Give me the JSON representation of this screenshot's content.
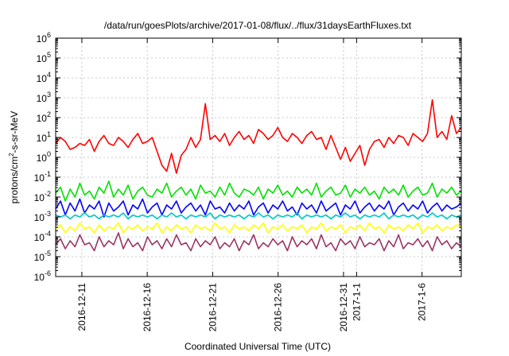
{
  "chart_data": {
    "type": "line",
    "title": "/data/run/goesPlots/archive/2017-01-08/flux/../flux/31daysEarthFluxes.txt",
    "xlabel": "Coordinated Universal Time (UTC)",
    "ylabel": {
      "base": "protons/cm",
      "sup": "2",
      "rest": "-s-sr-MeV"
    },
    "yscale": "log",
    "ylim_exp": [
      -6,
      6
    ],
    "y_ticks": [
      {
        "base": "10",
        "exp": "6"
      },
      {
        "base": "10",
        "exp": "5"
      },
      {
        "base": "10",
        "exp": "4"
      },
      {
        "base": "10",
        "exp": "3"
      },
      {
        "base": "10",
        "exp": "2"
      },
      {
        "base": "10",
        "exp": "1"
      },
      {
        "base": "10",
        "exp": "0"
      },
      {
        "base": "10",
        "exp": "-1"
      },
      {
        "base": "10",
        "exp": "-2"
      },
      {
        "base": "10",
        "exp": "-3"
      },
      {
        "base": "10",
        "exp": "-4"
      },
      {
        "base": "10",
        "exp": "-5"
      },
      {
        "base": "10",
        "exp": "-6"
      }
    ],
    "x_range_days": [
      0,
      31
    ],
    "x_ticks": [
      {
        "label": "2016-12-11",
        "day": 2.0
      },
      {
        "label": "2016-12-16",
        "day": 7.0
      },
      {
        "label": "2016-12-21",
        "day": 12.0
      },
      {
        "label": "2016-12-26",
        "day": 17.0
      },
      {
        "label": "2016-12-31",
        "day": 22.0
      },
      {
        "label": "2017-1-1",
        "day": 23.0
      },
      {
        "label": "2017-1-6",
        "day": 28.0
      }
    ],
    "grid": true,
    "series": [
      {
        "color": "#ff0000",
        "log_values": [
          0.7,
          1.0,
          0.8,
          0.4,
          0.5,
          0.7,
          0.6,
          0.9,
          0.3,
          0.8,
          1.1,
          0.7,
          0.6,
          1.0,
          0.8,
          0.5,
          0.9,
          1.2,
          0.7,
          0.8,
          1.0,
          0.3,
          -0.4,
          -0.7,
          0.2,
          -0.8,
          0.1,
          0.4,
          1.0,
          0.5,
          0.9,
          2.7,
          0.9,
          1.1,
          0.8,
          1.2,
          0.6,
          1.0,
          1.3,
          0.9,
          1.1,
          0.7,
          1.4,
          1.2,
          0.9,
          1.1,
          1.5,
          1.0,
          0.8,
          1.2,
          1.0,
          0.7,
          1.1,
          1.3,
          0.9,
          1.0,
          0.4,
          1.1,
          0.5,
          -0.1,
          0.5,
          -0.2,
          0.2,
          0.6,
          -0.4,
          0.4,
          0.8,
          0.9,
          0.5,
          1.0,
          0.7,
          1.1,
          1.0,
          0.6,
          1.2,
          1.0,
          0.8,
          1.2,
          2.9,
          1.0,
          1.3,
          0.9,
          2.1,
          1.2,
          1.5
        ]
      },
      {
        "color": "#00e000",
        "log_values": [
          -1.8,
          -1.5,
          -2.2,
          -1.6,
          -2.0,
          -1.3,
          -1.9,
          -1.7,
          -2.1,
          -1.5,
          -1.8,
          -1.2,
          -2.0,
          -1.6,
          -1.9,
          -1.4,
          -2.1,
          -1.7,
          -1.5,
          -1.9,
          -2.0,
          -1.6,
          -1.8,
          -1.3,
          -2.0,
          -1.7,
          -1.5,
          -1.9,
          -1.6,
          -2.1,
          -1.4,
          -1.8,
          -1.7,
          -2.0,
          -1.5,
          -1.9,
          -1.3,
          -1.8,
          -2.0,
          -1.6,
          -1.7,
          -1.9,
          -1.5,
          -2.1,
          -1.6,
          -1.8,
          -1.4,
          -1.9,
          -1.7,
          -2.0,
          -1.5,
          -1.8,
          -1.6,
          -1.9,
          -1.3,
          -2.0,
          -1.7,
          -1.5,
          -1.9,
          -1.8,
          -1.4,
          -2.0,
          -1.6,
          -1.8,
          -1.5,
          -1.9,
          -1.7,
          -2.1,
          -1.5,
          -1.8,
          -1.6,
          -1.9,
          -1.4,
          -2.0,
          -1.7,
          -1.5,
          -1.9,
          -1.8,
          -1.3,
          -2.0,
          -1.6,
          -1.8,
          -1.5,
          -1.9,
          -1.7
        ]
      },
      {
        "color": "#0000ff",
        "log_values": [
          -2.6,
          -2.2,
          -2.9,
          -2.3,
          -2.7,
          -2.1,
          -2.8,
          -2.4,
          -2.6,
          -2.2,
          -3.0,
          -2.3,
          -2.7,
          -2.5,
          -2.2,
          -2.9,
          -2.4,
          -2.6,
          -2.1,
          -2.8,
          -2.5,
          -2.3,
          -2.9,
          -2.4,
          -2.6,
          -2.2,
          -2.8,
          -2.5,
          -2.3,
          -2.7,
          -2.4,
          -2.9,
          -2.2,
          -2.6,
          -2.5,
          -2.8,
          -2.3,
          -2.7,
          -2.4,
          -2.6,
          -2.2,
          -2.9,
          -2.5,
          -2.3,
          -2.8,
          -2.4,
          -2.6,
          -2.2,
          -2.7,
          -2.5,
          -2.9,
          -2.3,
          -2.6,
          -2.4,
          -2.8,
          -2.2,
          -2.7,
          -2.5,
          -2.3,
          -2.9,
          -2.4,
          -2.6,
          -2.2,
          -2.8,
          -2.5,
          -2.3,
          -2.7,
          -2.4,
          -2.6,
          -2.2,
          -2.9,
          -2.5,
          -2.3,
          -2.7,
          -2.4,
          -2.6,
          -2.2,
          -2.8,
          -2.5,
          -2.3,
          -2.7,
          -2.4,
          -2.6,
          -2.5,
          -2.3
        ]
      },
      {
        "color": "#00c8c8",
        "log_values": [
          -2.9,
          -3.0,
          -2.9,
          -3.1,
          -2.9,
          -3.0,
          -2.8,
          -3.0,
          -2.9,
          -3.1,
          -2.9,
          -3.0,
          -2.9,
          -3.0,
          -2.8,
          -3.1,
          -2.9,
          -3.0,
          -2.9,
          -3.0,
          -2.9,
          -3.1,
          -2.9,
          -3.0,
          -2.8,
          -3.0,
          -2.9,
          -3.1,
          -2.9,
          -3.0,
          -2.9,
          -3.0,
          -2.8,
          -3.1,
          -2.9,
          -3.0,
          -2.9,
          -3.0,
          -2.9,
          -3.1,
          -2.9,
          -3.0,
          -2.8,
          -3.0,
          -2.9,
          -3.1,
          -2.9,
          -3.0,
          -2.9,
          -3.0,
          -2.8,
          -3.1,
          -2.9,
          -3.0,
          -2.9,
          -3.0,
          -2.9,
          -3.1,
          -2.9,
          -3.0,
          -2.8,
          -3.0,
          -2.9,
          -3.1,
          -2.9,
          -3.0,
          -2.9,
          -3.0,
          -2.8,
          -3.1,
          -2.9,
          -3.0,
          -2.9,
          -3.0,
          -2.9,
          -3.1,
          -2.9,
          -3.0,
          -2.8,
          -3.0,
          -2.9,
          -3.1,
          -2.9,
          -3.0,
          -2.9
        ]
      },
      {
        "color": "#ffff00",
        "log_values": [
          -3.6,
          -3.4,
          -3.8,
          -3.5,
          -3.7,
          -3.3,
          -3.6,
          -3.5,
          -3.8,
          -3.4,
          -3.7,
          -3.5,
          -3.6,
          -3.3,
          -3.8,
          -3.5,
          -3.6,
          -3.4,
          -3.7,
          -3.5,
          -3.6,
          -3.3,
          -3.8,
          -3.5,
          -3.7,
          -3.4,
          -3.6,
          -3.5,
          -3.8,
          -3.4,
          -3.6,
          -3.5,
          -3.7,
          -3.3,
          -3.6,
          -3.5,
          -3.8,
          -3.4,
          -3.6,
          -3.5,
          -3.7,
          -3.4,
          -3.6,
          -3.3,
          -3.8,
          -3.5,
          -3.6,
          -3.4,
          -3.7,
          -3.5,
          -3.6,
          -3.4,
          -3.8,
          -3.5,
          -3.6,
          -3.3,
          -3.7,
          -3.5,
          -3.6,
          -3.4,
          -3.8,
          -3.5,
          -3.6,
          -3.4,
          -3.7,
          -3.3,
          -3.6,
          -3.5,
          -3.8,
          -3.4,
          -3.6,
          -3.5,
          -3.7,
          -3.4,
          -3.6,
          -3.3,
          -3.8,
          -3.5,
          -3.6,
          -3.4,
          -3.7,
          -3.5,
          -3.6,
          -3.4,
          -3.5
        ]
      },
      {
        "color": "#993366",
        "log_values": [
          -4.4,
          -4.1,
          -4.6,
          -4.2,
          -4.5,
          -3.9,
          -4.4,
          -4.3,
          -4.7,
          -4.0,
          -4.5,
          -4.2,
          -4.4,
          -3.8,
          -4.6,
          -4.1,
          -4.5,
          -4.3,
          -4.7,
          -4.0,
          -4.4,
          -4.2,
          -4.6,
          -4.1,
          -4.5,
          -3.9,
          -4.4,
          -4.3,
          -4.7,
          -4.1,
          -4.5,
          -4.2,
          -4.4,
          -4.0,
          -4.6,
          -4.3,
          -4.5,
          -4.1,
          -4.7,
          -4.2,
          -4.4,
          -3.9,
          -4.6,
          -4.3,
          -4.5,
          -4.1,
          -4.4,
          -4.2,
          -4.7,
          -4.0,
          -4.5,
          -4.2,
          -4.4,
          -4.1,
          -4.6,
          -3.9,
          -4.5,
          -4.3,
          -4.7,
          -4.1,
          -4.4,
          -4.2,
          -4.6,
          -4.0,
          -4.5,
          -4.3,
          -4.4,
          -4.1,
          -4.7,
          -4.2,
          -4.5,
          -3.9,
          -4.6,
          -4.3,
          -4.4,
          -4.1,
          -4.5,
          -4.2,
          -4.7,
          -4.0,
          -4.4,
          -4.2,
          -4.6,
          -4.3,
          -4.5
        ]
      }
    ]
  }
}
